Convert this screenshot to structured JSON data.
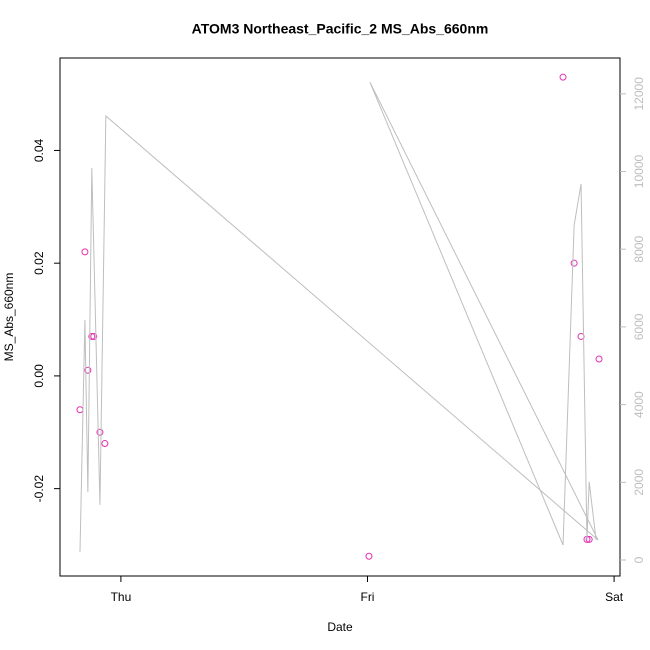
{
  "chart_data": {
    "type": "scatter",
    "title": "ATOM3 Northeast_Pacific_2 MS_Abs_660nm",
    "xlabel": "Date",
    "ylabel": "MS_Abs_660nm",
    "xlim": [
      -0.247,
      2.024
    ],
    "xticks": [
      {
        "value": 0,
        "label": "Thu"
      },
      {
        "value": 1,
        "label": "Fri"
      },
      {
        "value": 2,
        "label": "Sat"
      }
    ],
    "ylim": [
      -0.0355,
      0.0564
    ],
    "yticks": [
      -0.02,
      {
        "value": 0,
        "label": "0.00"
      },
      0.02,
      0.04
    ],
    "y2lim": [
      -412,
      12922
    ],
    "y2ticks": [
      0,
      2000,
      4000,
      6000,
      8000,
      10000,
      12000
    ],
    "series": [
      {
        "type": "scatter",
        "color": "#e62fb4",
        "x": [
          -0.166,
          -0.146,
          -0.134,
          -0.118,
          -0.11,
          -0.085,
          -0.065,
          1.006,
          1.793,
          1.838,
          1.866,
          1.89,
          1.899,
          1.939
        ],
        "values": [
          -0.006,
          0.022,
          0.001,
          0.007,
          0.007,
          -0.01,
          -0.012,
          -0.032,
          0.053,
          0.02,
          0.007,
          -0.029,
          -0.029,
          0.003
        ]
      },
      {
        "type": "line",
        "color": "#bebebe",
        "axis": "y2",
        "x": [
          -0.166,
          -0.146,
          -0.134,
          -0.118,
          -0.102,
          -0.085,
          -0.061,
          1.935,
          1.01,
          1.793,
          1.838,
          1.866,
          1.89,
          1.899,
          1.927
        ],
        "values": [
          200,
          6180,
          1750,
          10090,
          5920,
          1420,
          11430,
          515,
          12300,
          386,
          8620,
          9680,
          515,
          2010,
          515
        ]
      }
    ]
  }
}
